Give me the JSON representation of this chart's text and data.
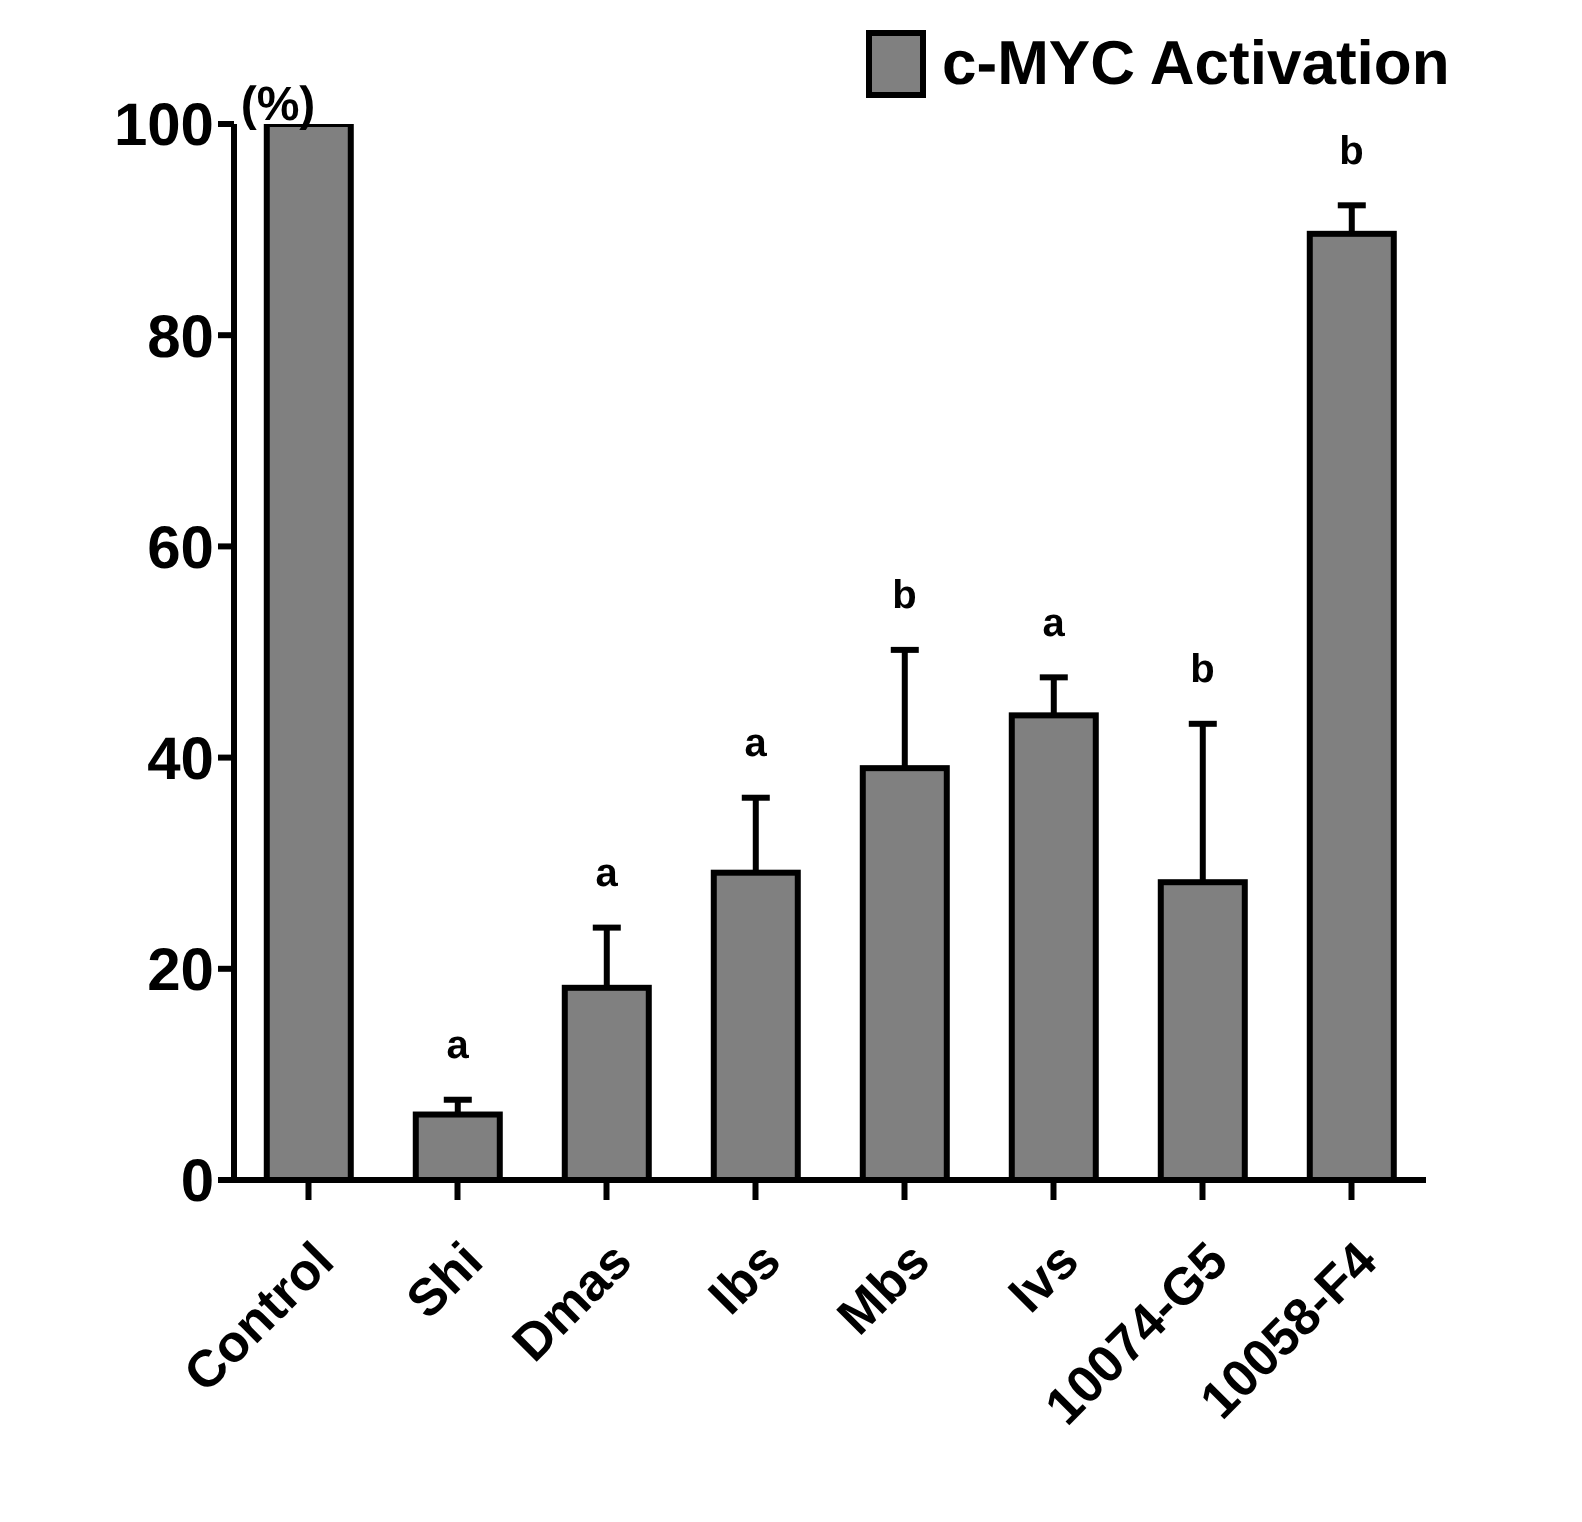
{
  "chart_data": {
    "type": "bar",
    "ylabel": "(%)",
    "categories": [
      "Control",
      "Shi",
      "Dmas",
      "Ibs",
      "Mbs",
      "Ivs",
      "10074-G5",
      "10058-F4"
    ],
    "series": [
      {
        "name": "c-MYC Activation",
        "color": "#808080",
        "values": [
          100,
          6.2,
          18.2,
          29.1,
          39.0,
          44.0,
          28.2,
          89.6
        ],
        "errors": [
          null,
          1.4,
          5.7,
          7.1,
          11.2,
          3.6,
          15.0,
          2.7
        ]
      }
    ],
    "ylim": [
      0,
      100
    ],
    "yticks": [
      0,
      20,
      40,
      60,
      80,
      100
    ],
    "grid": false,
    "legend": "top",
    "annotations": [
      {
        "text": "a",
        "x": "Shi",
        "y": 7.6
      },
      {
        "text": "a",
        "x": "Dmas",
        "y": 23.9
      },
      {
        "text": "a",
        "x": "Ibs",
        "y": 36.2
      },
      {
        "text": "b",
        "x": "Mbs",
        "y": 50.2
      },
      {
        "text": "a",
        "x": "Ivs",
        "y": 47.6
      },
      {
        "text": "b",
        "x": "10074-G5",
        "y": 43.2
      },
      {
        "text": "b",
        "x": "10058-F4",
        "y": 92.3
      }
    ]
  }
}
